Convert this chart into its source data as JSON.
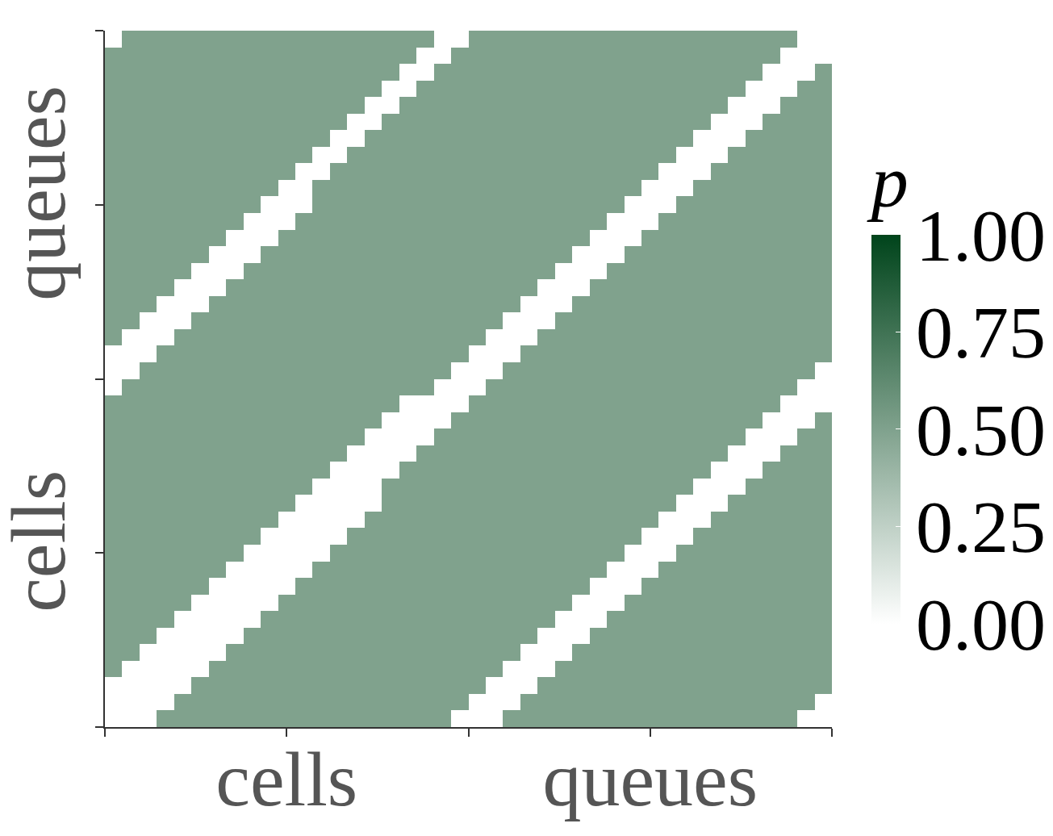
{
  "chart_data": {
    "type": "heatmap",
    "categories": [
      null,
      null,
      null,
      null,
      null,
      null,
      null,
      null,
      null,
      null,
      "cells",
      null,
      null,
      null,
      null,
      null,
      null,
      null,
      null,
      null,
      null,
      null,
      null,
      null,
      null,
      null,
      null,
      null,
      null,
      null,
      null,
      "queues",
      null,
      null,
      null,
      null,
      null,
      null,
      null,
      null,
      null,
      null
    ],
    "y_categories": [
      null,
      null,
      null,
      null,
      null,
      null,
      null,
      null,
      null,
      null,
      "queues",
      null,
      null,
      null,
      null,
      null,
      null,
      null,
      null,
      null,
      null,
      null,
      null,
      null,
      null,
      null,
      null,
      null,
      null,
      null,
      null,
      "cells",
      null,
      null,
      null,
      null,
      null,
      null,
      null,
      null,
      null,
      null
    ],
    "clabel": "p",
    "clim": [
      0,
      1
    ],
    "cticks": [
      {
        "value": 0,
        "label": "0.00"
      },
      {
        "value": 0.25,
        "label": "0.25"
      },
      {
        "value": 0.5,
        "label": "0.50"
      },
      {
        "value": 0.75,
        "label": "0.75"
      },
      {
        "value": 1,
        "label": "1.00"
      }
    ],
    "cells": [
      [
        null,
        0.5,
        0.5,
        0.5,
        0.5,
        0.5,
        0.5,
        0.5,
        0.5,
        0.5,
        0.5,
        0.5,
        0.5,
        0.5,
        0.5,
        0.5,
        0.5,
        0.5,
        0.5,
        null,
        null,
        0.5,
        0.5,
        0.5,
        0.5,
        0.5,
        0.5,
        0.5,
        0.5,
        0.5,
        0.5,
        0.5,
        0.5,
        0.5,
        0.5,
        0.5,
        0.5,
        0.5,
        0.5,
        0.5,
        null,
        null
      ],
      [
        0.5,
        0.5,
        0.5,
        0.5,
        0.5,
        0.5,
        0.5,
        0.5,
        0.5,
        0.5,
        0.5,
        0.5,
        0.5,
        0.5,
        0.5,
        0.5,
        0.5,
        0.5,
        null,
        null,
        0.5,
        0.5,
        0.5,
        0.5,
        0.5,
        0.5,
        0.5,
        0.5,
        0.5,
        0.5,
        0.5,
        0.5,
        0.5,
        0.5,
        0.5,
        0.5,
        0.5,
        0.5,
        0.5,
        null,
        null,
        null
      ],
      [
        0.5,
        0.5,
        0.5,
        0.5,
        0.5,
        0.5,
        0.5,
        0.5,
        0.5,
        0.5,
        0.5,
        0.5,
        0.5,
        0.5,
        0.5,
        0.5,
        0.5,
        null,
        null,
        0.5,
        0.5,
        0.5,
        0.5,
        0.5,
        0.5,
        0.5,
        0.5,
        0.5,
        0.5,
        0.5,
        0.5,
        0.5,
        0.5,
        0.5,
        0.5,
        0.5,
        0.5,
        0.5,
        null,
        null,
        null,
        0.5
      ],
      [
        0.5,
        0.5,
        0.5,
        0.5,
        0.5,
        0.5,
        0.5,
        0.5,
        0.5,
        0.5,
        0.5,
        0.5,
        0.5,
        0.5,
        0.5,
        0.5,
        null,
        null,
        0.5,
        0.5,
        0.5,
        0.5,
        0.5,
        0.5,
        0.5,
        0.5,
        0.5,
        0.5,
        0.5,
        0.5,
        0.5,
        0.5,
        0.5,
        0.5,
        0.5,
        0.5,
        0.5,
        null,
        null,
        null,
        0.5,
        0.5
      ],
      [
        0.5,
        0.5,
        0.5,
        0.5,
        0.5,
        0.5,
        0.5,
        0.5,
        0.5,
        0.5,
        0.5,
        0.5,
        0.5,
        0.5,
        0.5,
        null,
        null,
        0.5,
        0.5,
        0.5,
        0.5,
        0.5,
        0.5,
        0.5,
        0.5,
        0.5,
        0.5,
        0.5,
        0.5,
        0.5,
        0.5,
        0.5,
        0.5,
        0.5,
        0.5,
        0.5,
        null,
        null,
        null,
        0.5,
        0.5,
        0.5
      ],
      [
        0.5,
        0.5,
        0.5,
        0.5,
        0.5,
        0.5,
        0.5,
        0.5,
        0.5,
        0.5,
        0.5,
        0.5,
        0.5,
        0.5,
        null,
        null,
        0.5,
        0.5,
        0.5,
        0.5,
        0.5,
        0.5,
        0.5,
        0.5,
        0.5,
        0.5,
        0.5,
        0.5,
        0.5,
        0.5,
        0.5,
        0.5,
        0.5,
        0.5,
        0.5,
        null,
        null,
        null,
        0.5,
        0.5,
        0.5,
        0.5
      ],
      [
        0.5,
        0.5,
        0.5,
        0.5,
        0.5,
        0.5,
        0.5,
        0.5,
        0.5,
        0.5,
        0.5,
        0.5,
        0.5,
        null,
        null,
        0.5,
        0.5,
        0.5,
        0.5,
        0.5,
        0.5,
        0.5,
        0.5,
        0.5,
        0.5,
        0.5,
        0.5,
        0.5,
        0.5,
        0.5,
        0.5,
        0.5,
        0.5,
        0.5,
        null,
        null,
        null,
        0.5,
        0.5,
        0.5,
        0.5,
        0.5
      ],
      [
        0.5,
        0.5,
        0.5,
        0.5,
        0.5,
        0.5,
        0.5,
        0.5,
        0.5,
        0.5,
        0.5,
        0.5,
        null,
        null,
        0.5,
        0.5,
        0.5,
        0.5,
        0.5,
        0.5,
        0.5,
        0.5,
        0.5,
        0.5,
        0.5,
        0.5,
        0.5,
        0.5,
        0.5,
        0.5,
        0.5,
        0.5,
        0.5,
        null,
        null,
        null,
        0.5,
        0.5,
        0.5,
        0.5,
        0.5,
        0.5
      ],
      [
        0.5,
        0.5,
        0.5,
        0.5,
        0.5,
        0.5,
        0.5,
        0.5,
        0.5,
        0.5,
        0.5,
        null,
        null,
        0.5,
        0.5,
        0.5,
        0.5,
        0.5,
        0.5,
        0.5,
        0.5,
        0.5,
        0.5,
        0.5,
        0.5,
        0.5,
        0.5,
        0.5,
        0.5,
        0.5,
        0.5,
        0.5,
        null,
        null,
        null,
        0.5,
        0.5,
        0.5,
        0.5,
        0.5,
        0.5,
        0.5
      ],
      [
        0.5,
        0.5,
        0.5,
        0.5,
        0.5,
        0.5,
        0.5,
        0.5,
        0.5,
        0.5,
        null,
        null,
        0.5,
        0.5,
        0.5,
        0.5,
        0.5,
        0.5,
        0.5,
        0.5,
        0.5,
        0.5,
        0.5,
        0.5,
        0.5,
        0.5,
        0.5,
        0.5,
        0.5,
        0.5,
        0.5,
        null,
        null,
        null,
        0.5,
        0.5,
        0.5,
        0.5,
        0.5,
        0.5,
        0.5,
        0.5
      ],
      [
        0.5,
        0.5,
        0.5,
        0.5,
        0.5,
        0.5,
        0.5,
        0.5,
        0.5,
        null,
        null,
        null,
        0.5,
        0.5,
        0.5,
        0.5,
        0.5,
        0.5,
        0.5,
        0.5,
        0.5,
        0.5,
        0.5,
        0.5,
        0.5,
        0.5,
        0.5,
        0.5,
        0.5,
        0.5,
        null,
        null,
        null,
        0.5,
        0.5,
        0.5,
        0.5,
        0.5,
        0.5,
        0.5,
        0.5,
        0.5
      ],
      [
        0.5,
        0.5,
        0.5,
        0.5,
        0.5,
        0.5,
        0.5,
        0.5,
        null,
        null,
        null,
        0.5,
        0.5,
        0.5,
        0.5,
        0.5,
        0.5,
        0.5,
        0.5,
        0.5,
        0.5,
        0.5,
        0.5,
        0.5,
        0.5,
        0.5,
        0.5,
        0.5,
        0.5,
        null,
        null,
        null,
        0.5,
        0.5,
        0.5,
        0.5,
        0.5,
        0.5,
        0.5,
        0.5,
        0.5,
        0.5
      ],
      [
        0.5,
        0.5,
        0.5,
        0.5,
        0.5,
        0.5,
        0.5,
        null,
        null,
        null,
        0.5,
        0.5,
        0.5,
        0.5,
        0.5,
        0.5,
        0.5,
        0.5,
        0.5,
        0.5,
        0.5,
        0.5,
        0.5,
        0.5,
        0.5,
        0.5,
        0.5,
        0.5,
        null,
        null,
        null,
        0.5,
        0.5,
        0.5,
        0.5,
        0.5,
        0.5,
        0.5,
        0.5,
        0.5,
        0.5,
        0.5
      ],
      [
        0.5,
        0.5,
        0.5,
        0.5,
        0.5,
        0.5,
        null,
        null,
        null,
        0.5,
        0.5,
        0.5,
        0.5,
        0.5,
        0.5,
        0.5,
        0.5,
        0.5,
        0.5,
        0.5,
        0.5,
        0.5,
        0.5,
        0.5,
        0.5,
        0.5,
        0.5,
        null,
        null,
        null,
        0.5,
        0.5,
        0.5,
        0.5,
        0.5,
        0.5,
        0.5,
        0.5,
        0.5,
        0.5,
        0.5,
        0.5
      ],
      [
        0.5,
        0.5,
        0.5,
        0.5,
        0.5,
        null,
        null,
        null,
        0.5,
        0.5,
        0.5,
        0.5,
        0.5,
        0.5,
        0.5,
        0.5,
        0.5,
        0.5,
        0.5,
        0.5,
        0.5,
        0.5,
        0.5,
        0.5,
        0.5,
        0.5,
        null,
        null,
        null,
        0.5,
        0.5,
        0.5,
        0.5,
        0.5,
        0.5,
        0.5,
        0.5,
        0.5,
        0.5,
        0.5,
        0.5,
        0.5
      ],
      [
        0.5,
        0.5,
        0.5,
        0.5,
        null,
        null,
        null,
        0.5,
        0.5,
        0.5,
        0.5,
        0.5,
        0.5,
        0.5,
        0.5,
        0.5,
        0.5,
        0.5,
        0.5,
        0.5,
        0.5,
        0.5,
        0.5,
        0.5,
        0.5,
        null,
        null,
        null,
        0.5,
        0.5,
        0.5,
        0.5,
        0.5,
        0.5,
        0.5,
        0.5,
        0.5,
        0.5,
        0.5,
        0.5,
        0.5,
        0.5
      ],
      [
        0.5,
        0.5,
        0.5,
        null,
        null,
        null,
        0.5,
        0.5,
        0.5,
        0.5,
        0.5,
        0.5,
        0.5,
        0.5,
        0.5,
        0.5,
        0.5,
        0.5,
        0.5,
        0.5,
        0.5,
        0.5,
        0.5,
        0.5,
        null,
        null,
        null,
        0.5,
        0.5,
        0.5,
        0.5,
        0.5,
        0.5,
        0.5,
        0.5,
        0.5,
        0.5,
        0.5,
        0.5,
        0.5,
        0.5,
        0.5
      ],
      [
        0.5,
        0.5,
        null,
        null,
        null,
        0.5,
        0.5,
        0.5,
        0.5,
        0.5,
        0.5,
        0.5,
        0.5,
        0.5,
        0.5,
        0.5,
        0.5,
        0.5,
        0.5,
        0.5,
        0.5,
        0.5,
        0.5,
        null,
        null,
        null,
        0.5,
        0.5,
        0.5,
        0.5,
        0.5,
        0.5,
        0.5,
        0.5,
        0.5,
        0.5,
        0.5,
        0.5,
        0.5,
        0.5,
        0.5,
        0.5
      ],
      [
        0.5,
        null,
        null,
        null,
        0.5,
        0.5,
        0.5,
        0.5,
        0.5,
        0.5,
        0.5,
        0.5,
        0.5,
        0.5,
        0.5,
        0.5,
        0.5,
        0.5,
        0.5,
        0.5,
        0.5,
        0.5,
        null,
        null,
        null,
        0.5,
        0.5,
        0.5,
        0.5,
        0.5,
        0.5,
        0.5,
        0.5,
        0.5,
        0.5,
        0.5,
        0.5,
        0.5,
        0.5,
        0.5,
        0.5,
        0.5
      ],
      [
        null,
        null,
        null,
        0.5,
        0.5,
        0.5,
        0.5,
        0.5,
        0.5,
        0.5,
        0.5,
        0.5,
        0.5,
        0.5,
        0.5,
        0.5,
        0.5,
        0.5,
        0.5,
        0.5,
        0.5,
        null,
        null,
        null,
        0.5,
        0.5,
        0.5,
        0.5,
        0.5,
        0.5,
        0.5,
        0.5,
        0.5,
        0.5,
        0.5,
        0.5,
        0.5,
        0.5,
        0.5,
        0.5,
        0.5,
        0.5
      ],
      [
        null,
        null,
        0.5,
        0.5,
        0.5,
        0.5,
        0.5,
        0.5,
        0.5,
        0.5,
        0.5,
        0.5,
        0.5,
        0.5,
        0.5,
        0.5,
        0.5,
        0.5,
        0.5,
        0.5,
        null,
        null,
        null,
        0.5,
        0.5,
        0.5,
        0.5,
        0.5,
        0.5,
        0.5,
        0.5,
        0.5,
        0.5,
        0.5,
        0.5,
        0.5,
        0.5,
        0.5,
        0.5,
        0.5,
        0.5,
        null
      ],
      [
        null,
        0.5,
        0.5,
        0.5,
        0.5,
        0.5,
        0.5,
        0.5,
        0.5,
        0.5,
        0.5,
        0.5,
        0.5,
        0.5,
        0.5,
        0.5,
        0.5,
        0.5,
        0.5,
        null,
        null,
        null,
        0.5,
        0.5,
        0.5,
        0.5,
        0.5,
        0.5,
        0.5,
        0.5,
        0.5,
        0.5,
        0.5,
        0.5,
        0.5,
        0.5,
        0.5,
        0.5,
        0.5,
        0.5,
        null,
        null
      ],
      [
        0.5,
        0.5,
        0.5,
        0.5,
        0.5,
        0.5,
        0.5,
        0.5,
        0.5,
        0.5,
        0.5,
        0.5,
        0.5,
        0.5,
        0.5,
        0.5,
        0.5,
        null,
        null,
        null,
        null,
        0.5,
        0.5,
        0.5,
        0.5,
        0.5,
        0.5,
        0.5,
        0.5,
        0.5,
        0.5,
        0.5,
        0.5,
        0.5,
        0.5,
        0.5,
        0.5,
        0.5,
        0.5,
        null,
        null,
        null
      ],
      [
        0.5,
        0.5,
        0.5,
        0.5,
        0.5,
        0.5,
        0.5,
        0.5,
        0.5,
        0.5,
        0.5,
        0.5,
        0.5,
        0.5,
        0.5,
        0.5,
        null,
        null,
        null,
        null,
        0.5,
        0.5,
        0.5,
        0.5,
        0.5,
        0.5,
        0.5,
        0.5,
        0.5,
        0.5,
        0.5,
        0.5,
        0.5,
        0.5,
        0.5,
        0.5,
        0.5,
        0.5,
        null,
        null,
        null,
        0.5
      ],
      [
        0.5,
        0.5,
        0.5,
        0.5,
        0.5,
        0.5,
        0.5,
        0.5,
        0.5,
        0.5,
        0.5,
        0.5,
        0.5,
        0.5,
        0.5,
        null,
        null,
        null,
        null,
        0.5,
        0.5,
        0.5,
        0.5,
        0.5,
        0.5,
        0.5,
        0.5,
        0.5,
        0.5,
        0.5,
        0.5,
        0.5,
        0.5,
        0.5,
        0.5,
        0.5,
        0.5,
        null,
        null,
        null,
        0.5,
        0.5
      ],
      [
        0.5,
        0.5,
        0.5,
        0.5,
        0.5,
        0.5,
        0.5,
        0.5,
        0.5,
        0.5,
        0.5,
        0.5,
        0.5,
        0.5,
        null,
        null,
        null,
        null,
        0.5,
        0.5,
        0.5,
        0.5,
        0.5,
        0.5,
        0.5,
        0.5,
        0.5,
        0.5,
        0.5,
        0.5,
        0.5,
        0.5,
        0.5,
        0.5,
        0.5,
        0.5,
        null,
        null,
        null,
        0.5,
        0.5,
        0.5
      ],
      [
        0.5,
        0.5,
        0.5,
        0.5,
        0.5,
        0.5,
        0.5,
        0.5,
        0.5,
        0.5,
        0.5,
        0.5,
        0.5,
        null,
        null,
        null,
        null,
        0.5,
        0.5,
        0.5,
        0.5,
        0.5,
        0.5,
        0.5,
        0.5,
        0.5,
        0.5,
        0.5,
        0.5,
        0.5,
        0.5,
        0.5,
        0.5,
        0.5,
        0.5,
        null,
        null,
        null,
        0.5,
        0.5,
        0.5,
        0.5
      ],
      [
        0.5,
        0.5,
        0.5,
        0.5,
        0.5,
        0.5,
        0.5,
        0.5,
        0.5,
        0.5,
        0.5,
        0.5,
        null,
        null,
        null,
        null,
        0.5,
        0.5,
        0.5,
        0.5,
        0.5,
        0.5,
        0.5,
        0.5,
        0.5,
        0.5,
        0.5,
        0.5,
        0.5,
        0.5,
        0.5,
        0.5,
        0.5,
        0.5,
        null,
        null,
        null,
        0.5,
        0.5,
        0.5,
        0.5,
        0.5
      ],
      [
        0.5,
        0.5,
        0.5,
        0.5,
        0.5,
        0.5,
        0.5,
        0.5,
        0.5,
        0.5,
        0.5,
        null,
        null,
        null,
        null,
        null,
        0.5,
        0.5,
        0.5,
        0.5,
        0.5,
        0.5,
        0.5,
        0.5,
        0.5,
        0.5,
        0.5,
        0.5,
        0.5,
        0.5,
        0.5,
        0.5,
        0.5,
        null,
        null,
        null,
        0.5,
        0.5,
        0.5,
        0.5,
        0.5,
        0.5
      ],
      [
        0.5,
        0.5,
        0.5,
        0.5,
        0.5,
        0.5,
        0.5,
        0.5,
        0.5,
        0.5,
        null,
        null,
        null,
        null,
        null,
        0.5,
        0.5,
        0.5,
        0.5,
        0.5,
        0.5,
        0.5,
        0.5,
        0.5,
        0.5,
        0.5,
        0.5,
        0.5,
        0.5,
        0.5,
        0.5,
        0.5,
        null,
        null,
        null,
        0.5,
        0.5,
        0.5,
        0.5,
        0.5,
        0.5,
        0.5
      ],
      [
        0.5,
        0.5,
        0.5,
        0.5,
        0.5,
        0.5,
        0.5,
        0.5,
        0.5,
        null,
        null,
        null,
        null,
        null,
        0.5,
        0.5,
        0.5,
        0.5,
        0.5,
        0.5,
        0.5,
        0.5,
        0.5,
        0.5,
        0.5,
        0.5,
        0.5,
        0.5,
        0.5,
        0.5,
        0.5,
        null,
        null,
        null,
        0.5,
        0.5,
        0.5,
        0.5,
        0.5,
        0.5,
        0.5,
        0.5
      ],
      [
        0.5,
        0.5,
        0.5,
        0.5,
        0.5,
        0.5,
        0.5,
        0.5,
        null,
        null,
        null,
        null,
        null,
        0.5,
        0.5,
        0.5,
        0.5,
        0.5,
        0.5,
        0.5,
        0.5,
        0.5,
        0.5,
        0.5,
        0.5,
        0.5,
        0.5,
        0.5,
        0.5,
        0.5,
        null,
        null,
        null,
        0.5,
        0.5,
        0.5,
        0.5,
        0.5,
        0.5,
        0.5,
        0.5,
        0.5
      ],
      [
        0.5,
        0.5,
        0.5,
        0.5,
        0.5,
        0.5,
        0.5,
        null,
        null,
        null,
        null,
        null,
        0.5,
        0.5,
        0.5,
        0.5,
        0.5,
        0.5,
        0.5,
        0.5,
        0.5,
        0.5,
        0.5,
        0.5,
        0.5,
        0.5,
        0.5,
        0.5,
        0.5,
        null,
        null,
        null,
        0.5,
        0.5,
        0.5,
        0.5,
        0.5,
        0.5,
        0.5,
        0.5,
        0.5,
        0.5
      ],
      [
        0.5,
        0.5,
        0.5,
        0.5,
        0.5,
        0.5,
        null,
        null,
        null,
        null,
        null,
        0.5,
        0.5,
        0.5,
        0.5,
        0.5,
        0.5,
        0.5,
        0.5,
        0.5,
        0.5,
        0.5,
        0.5,
        0.5,
        0.5,
        0.5,
        0.5,
        0.5,
        null,
        null,
        null,
        0.5,
        0.5,
        0.5,
        0.5,
        0.5,
        0.5,
        0.5,
        0.5,
        0.5,
        0.5,
        0.5
      ],
      [
        0.5,
        0.5,
        0.5,
        0.5,
        0.5,
        null,
        null,
        null,
        null,
        null,
        0.5,
        0.5,
        0.5,
        0.5,
        0.5,
        0.5,
        0.5,
        0.5,
        0.5,
        0.5,
        0.5,
        0.5,
        0.5,
        0.5,
        0.5,
        0.5,
        0.5,
        null,
        null,
        null,
        0.5,
        0.5,
        0.5,
        0.5,
        0.5,
        0.5,
        0.5,
        0.5,
        0.5,
        0.5,
        0.5,
        0.5
      ],
      [
        0.5,
        0.5,
        0.5,
        0.5,
        null,
        null,
        null,
        null,
        null,
        0.5,
        0.5,
        0.5,
        0.5,
        0.5,
        0.5,
        0.5,
        0.5,
        0.5,
        0.5,
        0.5,
        0.5,
        0.5,
        0.5,
        0.5,
        0.5,
        0.5,
        null,
        null,
        null,
        0.5,
        0.5,
        0.5,
        0.5,
        0.5,
        0.5,
        0.5,
        0.5,
        0.5,
        0.5,
        0.5,
        0.5,
        0.5
      ],
      [
        0.5,
        0.5,
        0.5,
        null,
        null,
        null,
        null,
        null,
        0.5,
        0.5,
        0.5,
        0.5,
        0.5,
        0.5,
        0.5,
        0.5,
        0.5,
        0.5,
        0.5,
        0.5,
        0.5,
        0.5,
        0.5,
        0.5,
        0.5,
        null,
        null,
        null,
        0.5,
        0.5,
        0.5,
        0.5,
        0.5,
        0.5,
        0.5,
        0.5,
        0.5,
        0.5,
        0.5,
        0.5,
        0.5,
        0.5
      ],
      [
        0.5,
        0.5,
        null,
        null,
        null,
        null,
        null,
        0.5,
        0.5,
        0.5,
        0.5,
        0.5,
        0.5,
        0.5,
        0.5,
        0.5,
        0.5,
        0.5,
        0.5,
        0.5,
        0.5,
        0.5,
        0.5,
        0.5,
        null,
        null,
        null,
        0.5,
        0.5,
        0.5,
        0.5,
        0.5,
        0.5,
        0.5,
        0.5,
        0.5,
        0.5,
        0.5,
        0.5,
        0.5,
        0.5,
        0.5
      ],
      [
        0.5,
        null,
        null,
        null,
        null,
        null,
        0.5,
        0.5,
        0.5,
        0.5,
        0.5,
        0.5,
        0.5,
        0.5,
        0.5,
        0.5,
        0.5,
        0.5,
        0.5,
        0.5,
        0.5,
        0.5,
        0.5,
        null,
        null,
        null,
        0.5,
        0.5,
        0.5,
        0.5,
        0.5,
        0.5,
        0.5,
        0.5,
        0.5,
        0.5,
        0.5,
        0.5,
        0.5,
        0.5,
        0.5,
        0.5
      ],
      [
        null,
        null,
        null,
        null,
        null,
        0.5,
        0.5,
        0.5,
        0.5,
        0.5,
        0.5,
        0.5,
        0.5,
        0.5,
        0.5,
        0.5,
        0.5,
        0.5,
        0.5,
        0.5,
        0.5,
        0.5,
        null,
        null,
        null,
        0.5,
        0.5,
        0.5,
        0.5,
        0.5,
        0.5,
        0.5,
        0.5,
        0.5,
        0.5,
        0.5,
        0.5,
        0.5,
        0.5,
        0.5,
        0.5,
        0.5
      ],
      [
        null,
        null,
        null,
        null,
        0.5,
        0.5,
        0.5,
        0.5,
        0.5,
        0.5,
        0.5,
        0.5,
        0.5,
        0.5,
        0.5,
        0.5,
        0.5,
        0.5,
        0.5,
        0.5,
        0.5,
        null,
        null,
        null,
        0.5,
        0.5,
        0.5,
        0.5,
        0.5,
        0.5,
        0.5,
        0.5,
        0.5,
        0.5,
        0.5,
        0.5,
        0.5,
        0.5,
        0.5,
        0.5,
        0.5,
        null
      ],
      [
        null,
        null,
        null,
        0.5,
        0.5,
        0.5,
        0.5,
        0.5,
        0.5,
        0.5,
        0.5,
        0.5,
        0.5,
        0.5,
        0.5,
        0.5,
        0.5,
        0.5,
        0.5,
        0.5,
        null,
        null,
        null,
        0.5,
        0.5,
        0.5,
        0.5,
        0.5,
        0.5,
        0.5,
        0.5,
        0.5,
        0.5,
        0.5,
        0.5,
        0.5,
        0.5,
        0.5,
        0.5,
        0.5,
        null,
        null
      ]
    ]
  }
}
